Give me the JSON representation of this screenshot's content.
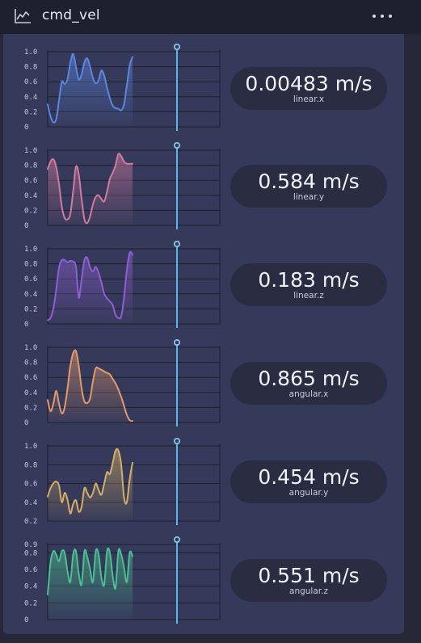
{
  "header": {
    "title": "cmd_vel",
    "icon": "line-chart-icon",
    "menu_icon": "more-horizontal-icon"
  },
  "plots": [
    {
      "id": "linear-x",
      "value": "0.00483 m/s",
      "label": "linear.x",
      "color": "#5b86e0",
      "y_ticks": [
        "1.0",
        "0.8",
        "0.6",
        "0.4",
        "0.2",
        "0"
      ],
      "ylim": [
        0,
        1
      ],
      "series": [
        0.3,
        0.14,
        0.06,
        0.1,
        0.35,
        0.6,
        0.57,
        0.63,
        0.85,
        0.97,
        0.8,
        0.63,
        0.7,
        0.86,
        0.91,
        0.8,
        0.65,
        0.58,
        0.62,
        0.75,
        0.68,
        0.52,
        0.38,
        0.28,
        0.25,
        0.24,
        0.22,
        0.3,
        0.55,
        0.82,
        0.93
      ]
    },
    {
      "id": "linear-y",
      "value": "0.584 m/s",
      "label": "linear.y",
      "color": "#d07a9d",
      "y_ticks": [
        "1.0",
        "0.8",
        "0.6",
        "0.4",
        "0.2",
        "0"
      ],
      "ylim": [
        0,
        1
      ],
      "series": [
        0.75,
        0.85,
        0.88,
        0.78,
        0.55,
        0.25,
        0.1,
        0.08,
        0.15,
        0.45,
        0.78,
        0.68,
        0.35,
        0.08,
        0.03,
        0.12,
        0.28,
        0.38,
        0.4,
        0.35,
        0.32,
        0.45,
        0.62,
        0.7,
        0.8,
        0.95,
        0.92,
        0.85,
        0.82,
        0.82,
        0.82
      ]
    },
    {
      "id": "linear-z",
      "value": "0.183 m/s",
      "label": "linear.z",
      "color": "#8e5fd4",
      "y_ticks": [
        "1.0",
        "0.8",
        "0.6",
        "0.4",
        "0.2",
        "0"
      ],
      "ylim": [
        0,
        1
      ],
      "series": [
        0.05,
        0.08,
        0.2,
        0.45,
        0.75,
        0.85,
        0.85,
        0.82,
        0.84,
        0.83,
        0.76,
        0.35,
        0.6,
        0.85,
        0.88,
        0.75,
        0.7,
        0.76,
        0.68,
        0.55,
        0.4,
        0.34,
        0.3,
        0.25,
        0.12,
        0.08,
        0.1,
        0.35,
        0.72,
        0.95,
        0.92
      ]
    },
    {
      "id": "angular-x",
      "value": "0.865 m/s",
      "label": "angular.x",
      "color": "#e1996b",
      "y_ticks": [
        "1.0",
        "0.8",
        "0.6",
        "0.4",
        "0.2",
        "0"
      ],
      "ylim": [
        0,
        1
      ],
      "series": [
        0.3,
        0.15,
        0.25,
        0.42,
        0.25,
        0.12,
        0.2,
        0.45,
        0.75,
        0.92,
        0.95,
        0.75,
        0.45,
        0.28,
        0.26,
        0.32,
        0.55,
        0.72,
        0.72,
        0.7,
        0.68,
        0.66,
        0.64,
        0.58,
        0.52,
        0.44,
        0.34,
        0.22,
        0.1,
        0.03,
        0.02
      ]
    },
    {
      "id": "angular-y",
      "value": "0.454 m/s",
      "label": "angular.y",
      "color": "#d3af66",
      "y_ticks": [
        "1.0",
        "0.8",
        "0.6",
        "0.4",
        "0.2"
      ],
      "ylim": [
        0.2,
        1
      ],
      "series": [
        0.46,
        0.55,
        0.6,
        0.62,
        0.58,
        0.4,
        0.5,
        0.43,
        0.28,
        0.38,
        0.42,
        0.3,
        0.35,
        0.55,
        0.5,
        0.45,
        0.5,
        0.6,
        0.53,
        0.48,
        0.6,
        0.72,
        0.7,
        0.82,
        0.95,
        0.95,
        0.8,
        0.45,
        0.4,
        0.65,
        0.82
      ]
    },
    {
      "id": "angular-z",
      "value": "0.551 m/s",
      "label": "angular.z",
      "color": "#49c090",
      "y_ticks": [
        "0.9",
        "0.8",
        "0.6",
        "0.4",
        "0.2",
        "0"
      ],
      "ylim": [
        0,
        0.9
      ],
      "series": [
        0.3,
        0.68,
        0.82,
        0.78,
        0.7,
        0.82,
        0.8,
        0.58,
        0.45,
        0.78,
        0.82,
        0.55,
        0.42,
        0.82,
        0.75,
        0.6,
        0.45,
        0.82,
        0.78,
        0.5,
        0.42,
        0.82,
        0.8,
        0.52,
        0.38,
        0.82,
        0.78,
        0.62,
        0.45,
        0.8,
        0.76
      ]
    }
  ]
}
